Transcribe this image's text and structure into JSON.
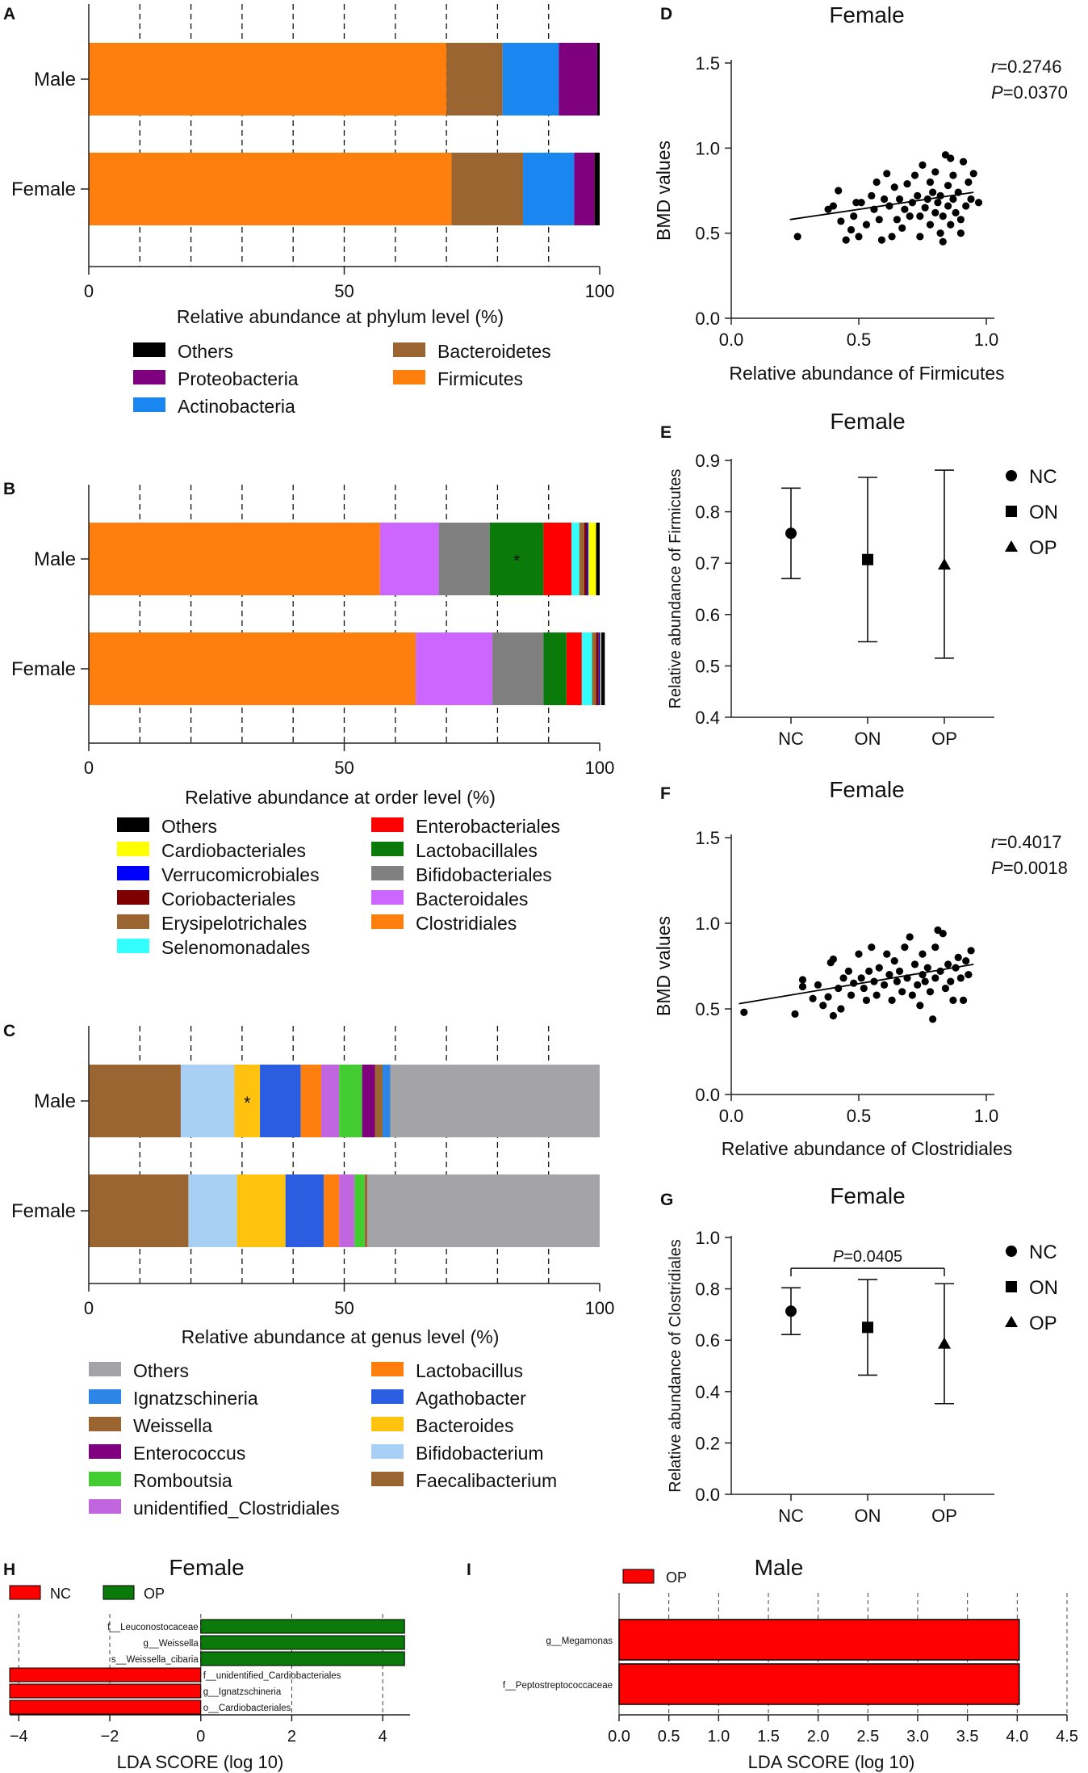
{
  "colors": {
    "Others": "#000000",
    "Proteobacteria": "#7f007f",
    "Actinobacteria": "#1a86f0",
    "Bacteroidetes": "#9b6532",
    "Firmicutes": "#ff7f0e",
    "Enterobacteriales": "#ff0000",
    "Lactobacillales": "#0a7a0a",
    "Bifidobacteriales": "#808080",
    "Bacteroidales": "#cc66ff",
    "Clostridiales": "#ff7f0e",
    "Cardiobacteriales": "#ffff00",
    "Verrucomicrobiales": "#0000ff",
    "Coriobacteriales": "#7f0000",
    "Erysipelotrichales": "#9b6532",
    "Selenomonadales": "#33ffff",
    "gOthers": "#a3a3a8",
    "Ignatzschineria": "#2d85e6",
    "Weissella": "#9b6532",
    "Enterococcus": "#7f007f",
    "Romboutsia": "#44cc33",
    "unidentified_Clostridiales": "#c266e0",
    "Lactobacillus": "#ff7f0e",
    "Agathobacter": "#2a5de0",
    "Bacteroides": "#ffc20e",
    "Bifidobacterium": "#a8d0f5",
    "Faecalibacterium": "#9b6532",
    "ldaNC": "#ff0000",
    "ldaOP": "#0a7a0a"
  },
  "chart_data": [
    {
      "panel": "A",
      "type": "bar",
      "orientation": "horizontal-stacked",
      "categories": [
        "Male",
        "Female"
      ],
      "xlabel": "Relative abundance at phylum level (%)",
      "xlim": [
        0,
        100
      ],
      "xticks": [
        "0",
        "50",
        "100"
      ],
      "series": [
        {
          "name": "Firmicutes",
          "values": [
            70,
            71
          ]
        },
        {
          "name": "Bacteroidetes",
          "values": [
            11,
            14
          ]
        },
        {
          "name": "Actinobacteria",
          "values": [
            11,
            10
          ]
        },
        {
          "name": "Proteobacteria",
          "values": [
            7.5,
            4
          ]
        },
        {
          "name": "Others",
          "values": [
            0.5,
            1
          ]
        }
      ],
      "legend": [
        {
          "name": "Others",
          "label": "Others"
        },
        {
          "name": "Bacteroidetes",
          "label": "Bacteroidetes"
        },
        {
          "name": "Proteobacteria",
          "label": "Proteobacteria"
        },
        {
          "name": "Firmicutes",
          "label": "Firmicutes"
        },
        {
          "name": "Actinobacteria",
          "label": "Actinobacteria"
        }
      ]
    },
    {
      "panel": "B",
      "type": "bar",
      "orientation": "horizontal-stacked",
      "categories": [
        "Male",
        "Female"
      ],
      "xlabel": "Relative abundance at order level (%)",
      "xlim": [
        0,
        100
      ],
      "xticks": [
        "0",
        "50",
        "100"
      ],
      "series": [
        {
          "name": "Clostridiales",
          "values": [
            57,
            64
          ]
        },
        {
          "name": "Bacteroidales",
          "values": [
            11.5,
            15
          ]
        },
        {
          "name": "Bifidobacteriales",
          "values": [
            10,
            10
          ]
        },
        {
          "name": "Lactobacillales",
          "values": [
            10.5,
            4.5
          ]
        },
        {
          "name": "Enterobacteriales",
          "values": [
            5.5,
            3
          ]
        },
        {
          "name": "Selenomonadales",
          "values": [
            1.5,
            2
          ]
        },
        {
          "name": "Erysipelotrichales",
          "values": [
            1,
            0.8
          ]
        },
        {
          "name": "Coriobacteriales",
          "values": [
            0.5,
            0.5
          ]
        },
        {
          "name": "Verrucomicrobiales",
          "values": [
            0.3,
            0.3
          ]
        },
        {
          "name": "Cardiobacteriales",
          "values": [
            1.5,
            0.2
          ]
        },
        {
          "name": "Others",
          "values": [
            0.7,
            0.7
          ]
        }
      ],
      "annotations": [
        {
          "category": "Male",
          "series": "Lactobacillales",
          "text": "*"
        }
      ],
      "legend": [
        {
          "name": "Others",
          "label": "Others"
        },
        {
          "name": "Enterobacteriales",
          "label": "Enterobacteriales"
        },
        {
          "name": "Cardiobacteriales",
          "label": "Cardiobacteriales"
        },
        {
          "name": "Lactobacillales",
          "label": "Lactobacillales"
        },
        {
          "name": "Verrucomicrobiales",
          "label": "Verrucomicrobiales"
        },
        {
          "name": "Bifidobacteriales",
          "label": "Bifidobacteriales"
        },
        {
          "name": "Coriobacteriales",
          "label": "Coriobacteriales"
        },
        {
          "name": "Bacteroidales",
          "label": "Bacteroidales"
        },
        {
          "name": "Erysipelotrichales",
          "label": "Erysipelotrichales"
        },
        {
          "name": "Clostridiales",
          "label": "Clostridiales"
        },
        {
          "name": "Selenomonadales",
          "label": "Selenomonadales"
        }
      ]
    },
    {
      "panel": "C",
      "type": "bar",
      "orientation": "horizontal-stacked",
      "categories": [
        "Male",
        "Female"
      ],
      "xlabel": "Relative abundance at genus level (%)",
      "xlim": [
        0,
        100
      ],
      "xticks": [
        "0",
        "50",
        "100"
      ],
      "series": [
        {
          "name": "Faecalibacterium",
          "values": [
            18,
            19.5
          ]
        },
        {
          "name": "Bifidobacterium",
          "values": [
            10.5,
            9.5
          ]
        },
        {
          "name": "Bacteroides",
          "values": [
            5,
            9.5
          ]
        },
        {
          "name": "Agathobacter",
          "values": [
            8,
            7.5
          ]
        },
        {
          "name": "Lactobacillus",
          "values": [
            4,
            3
          ]
        },
        {
          "name": "unidentified_Clostridiales",
          "values": [
            3.5,
            3
          ]
        },
        {
          "name": "Romboutsia",
          "values": [
            4.5,
            2
          ]
        },
        {
          "name": "Enterococcus",
          "values": [
            2.5,
            0
          ]
        },
        {
          "name": "Weissella",
          "values": [
            1.5,
            0.5
          ]
        },
        {
          "name": "Ignatzschineria",
          "values": [
            1.5,
            0
          ]
        },
        {
          "name": "gOthers",
          "values": [
            41,
            45.5
          ]
        }
      ],
      "annotations": [
        {
          "category": "Male",
          "series": "Bacteroides",
          "text": "*"
        }
      ],
      "legend": [
        {
          "name": "gOthers",
          "label": "Others"
        },
        {
          "name": "Lactobacillus",
          "label": "Lactobacillus"
        },
        {
          "name": "Ignatzschineria",
          "label": "Ignatzschineria"
        },
        {
          "name": "Agathobacter",
          "label": "Agathobacter"
        },
        {
          "name": "Weissella",
          "label": "Weissella"
        },
        {
          "name": "Bacteroides",
          "label": "Bacteroides"
        },
        {
          "name": "Enterococcus",
          "label": "Enterococcus"
        },
        {
          "name": "Bifidobacterium",
          "label": "Bifidobacterium"
        },
        {
          "name": "Romboutsia",
          "label": "Romboutsia"
        },
        {
          "name": "Faecalibacterium",
          "label": "Faecalibacterium"
        },
        {
          "name": "unidentified_Clostridiales",
          "label": "unidentified_Clostridiales"
        }
      ]
    },
    {
      "panel": "D",
      "type": "scatter",
      "title": "Female",
      "xlabel": "Relative abundance of Firmicutes",
      "ylabel": "BMD values",
      "xlim": [
        0,
        1.0
      ],
      "ylim": [
        0,
        1.5
      ],
      "xticks": [
        "0.0",
        "0.5",
        "1.0"
      ],
      "yticks": [
        "0.0",
        "0.5",
        "1.0",
        "1.5"
      ],
      "stat_r": "=0.2746",
      "stat_p": "=0.0370",
      "fit": {
        "x": [
          0.23,
          0.95
        ],
        "y": [
          0.58,
          0.74
        ]
      },
      "points": [
        [
          0.26,
          0.48
        ],
        [
          0.38,
          0.64
        ],
        [
          0.4,
          0.66
        ],
        [
          0.42,
          0.75
        ],
        [
          0.43,
          0.57
        ],
        [
          0.45,
          0.46
        ],
        [
          0.47,
          0.52
        ],
        [
          0.48,
          0.6
        ],
        [
          0.49,
          0.68
        ],
        [
          0.5,
          0.48
        ],
        [
          0.51,
          0.68
        ],
        [
          0.53,
          0.55
        ],
        [
          0.55,
          0.72
        ],
        [
          0.56,
          0.64
        ],
        [
          0.57,
          0.8
        ],
        [
          0.58,
          0.58
        ],
        [
          0.59,
          0.46
        ],
        [
          0.6,
          0.7
        ],
        [
          0.61,
          0.85
        ],
        [
          0.62,
          0.66
        ],
        [
          0.63,
          0.48
        ],
        [
          0.64,
          0.77
        ],
        [
          0.65,
          0.58
        ],
        [
          0.66,
          0.7
        ],
        [
          0.67,
          0.53
        ],
        [
          0.68,
          0.64
        ],
        [
          0.69,
          0.79
        ],
        [
          0.7,
          0.6
        ],
        [
          0.71,
          0.68
        ],
        [
          0.72,
          0.84
        ],
        [
          0.73,
          0.72
        ],
        [
          0.74,
          0.48
        ],
        [
          0.74,
          0.6
        ],
        [
          0.75,
          0.9
        ],
        [
          0.76,
          0.65
        ],
        [
          0.77,
          0.7
        ],
        [
          0.78,
          0.55
        ],
        [
          0.78,
          0.8
        ],
        [
          0.79,
          0.74
        ],
        [
          0.8,
          0.62
        ],
        [
          0.8,
          0.86
        ],
        [
          0.81,
          0.68
        ],
        [
          0.82,
          0.5
        ],
        [
          0.82,
          0.72
        ],
        [
          0.83,
          0.45
        ],
        [
          0.83,
          0.6
        ],
        [
          0.84,
          0.96
        ],
        [
          0.85,
          0.78
        ],
        [
          0.85,
          0.66
        ],
        [
          0.86,
          0.55
        ],
        [
          0.87,
          0.7
        ],
        [
          0.87,
          0.84
        ],
        [
          0.88,
          0.62
        ],
        [
          0.89,
          0.74
        ],
        [
          0.9,
          0.58
        ],
        [
          0.91,
          0.92
        ],
        [
          0.92,
          0.66
        ],
        [
          0.93,
          0.8
        ],
        [
          0.94,
          0.7
        ],
        [
          0.95,
          0.85
        ],
        [
          0.97,
          0.68
        ],
        [
          0.9,
          0.5
        ],
        [
          0.86,
          0.94
        ]
      ]
    },
    {
      "panel": "E",
      "type": "scatter",
      "title": "Female",
      "ylabel": "Relative abundance of Firmicutes",
      "categories": [
        "NC",
        "ON",
        "OP"
      ],
      "ylim": [
        0.4,
        0.9
      ],
      "yticks": [
        "0.4",
        "0.5",
        "0.6",
        "0.7",
        "0.8",
        "0.9"
      ],
      "groups": [
        {
          "name": "NC",
          "marker": "circle",
          "mean": 0.758,
          "low": 0.67,
          "high": 0.846
        },
        {
          "name": "ON",
          "marker": "square",
          "mean": 0.707,
          "low": 0.547,
          "high": 0.867
        },
        {
          "name": "OP",
          "marker": "triangle",
          "mean": 0.697,
          "low": 0.515,
          "high": 0.881
        }
      ]
    },
    {
      "panel": "F",
      "type": "scatter",
      "title": "Female",
      "xlabel": "Relative abundance of Clostridiales",
      "ylabel": "BMD values",
      "xlim": [
        0,
        1.0
      ],
      "ylim": [
        0,
        1.5
      ],
      "xticks": [
        "0.0",
        "0.5",
        "1.0"
      ],
      "yticks": [
        "0.0",
        "0.5",
        "1.0",
        "1.5"
      ],
      "stat_r": "=0.4017",
      "stat_p": "=0.0018",
      "fit": {
        "x": [
          0.03,
          0.95
        ],
        "y": [
          0.53,
          0.76
        ]
      },
      "points": [
        [
          0.05,
          0.48
        ],
        [
          0.25,
          0.47
        ],
        [
          0.28,
          0.63
        ],
        [
          0.28,
          0.67
        ],
        [
          0.32,
          0.56
        ],
        [
          0.34,
          0.64
        ],
        [
          0.36,
          0.52
        ],
        [
          0.38,
          0.57
        ],
        [
          0.39,
          0.77
        ],
        [
          0.4,
          0.46
        ],
        [
          0.4,
          0.79
        ],
        [
          0.42,
          0.62
        ],
        [
          0.43,
          0.5
        ],
        [
          0.44,
          0.68
        ],
        [
          0.46,
          0.72
        ],
        [
          0.47,
          0.58
        ],
        [
          0.48,
          0.65
        ],
        [
          0.5,
          0.82
        ],
        [
          0.51,
          0.68
        ],
        [
          0.52,
          0.62
        ],
        [
          0.53,
          0.55
        ],
        [
          0.54,
          0.72
        ],
        [
          0.55,
          0.86
        ],
        [
          0.56,
          0.66
        ],
        [
          0.57,
          0.58
        ],
        [
          0.58,
          0.74
        ],
        [
          0.6,
          0.64
        ],
        [
          0.61,
          0.82
        ],
        [
          0.62,
          0.7
        ],
        [
          0.63,
          0.55
        ],
        [
          0.64,
          0.78
        ],
        [
          0.65,
          0.66
        ],
        [
          0.66,
          0.72
        ],
        [
          0.67,
          0.6
        ],
        [
          0.68,
          0.86
        ],
        [
          0.69,
          0.68
        ],
        [
          0.7,
          0.92
        ],
        [
          0.71,
          0.58
        ],
        [
          0.72,
          0.76
        ],
        [
          0.73,
          0.64
        ],
        [
          0.74,
          0.52
        ],
        [
          0.75,
          0.82
        ],
        [
          0.75,
          0.7
        ],
        [
          0.76,
          0.66
        ],
        [
          0.77,
          0.74
        ],
        [
          0.78,
          0.6
        ],
        [
          0.79,
          0.44
        ],
        [
          0.8,
          0.86
        ],
        [
          0.8,
          0.68
        ],
        [
          0.81,
          0.96
        ],
        [
          0.82,
          0.72
        ],
        [
          0.83,
          0.94
        ],
        [
          0.84,
          0.62
        ],
        [
          0.85,
          0.76
        ],
        [
          0.86,
          0.66
        ],
        [
          0.87,
          0.55
        ],
        [
          0.88,
          0.74
        ],
        [
          0.89,
          0.8
        ],
        [
          0.9,
          0.68
        ],
        [
          0.91,
          0.55
        ],
        [
          0.92,
          0.78
        ],
        [
          0.94,
          0.84
        ],
        [
          0.93,
          0.7
        ]
      ]
    },
    {
      "panel": "G",
      "type": "scatter",
      "title": "Female",
      "ylabel": "Relative abundance of Clostridiales",
      "categories": [
        "NC",
        "ON",
        "OP"
      ],
      "ylim": [
        0.0,
        1.0
      ],
      "yticks": [
        "0.0",
        "0.2",
        "0.4",
        "0.6",
        "0.8",
        "1.0"
      ],
      "bracket": {
        "from": "NC",
        "to": "OP",
        "y": 0.88,
        "label": "=0.0405"
      },
      "groups": [
        {
          "name": "NC",
          "marker": "circle",
          "mean": 0.713,
          "low": 0.622,
          "high": 0.804
        },
        {
          "name": "ON",
          "marker": "square",
          "mean": 0.65,
          "low": 0.464,
          "high": 0.836
        },
        {
          "name": "OP",
          "marker": "triangle",
          "mean": 0.586,
          "low": 0.353,
          "high": 0.82
        }
      ]
    },
    {
      "panel": "H",
      "type": "bar",
      "orientation": "horizontal-diverging",
      "title": "Female",
      "xlabel": "LDA SCORE (log 10)",
      "xlim": [
        -4.2,
        4.6
      ],
      "xticks": [
        "−4",
        "−2",
        "0",
        "2",
        "4"
      ],
      "legend": [
        {
          "name": "ldaNC",
          "label": "NC"
        },
        {
          "name": "ldaOP",
          "label": "OP"
        }
      ],
      "bars": [
        {
          "label": "f__Leuconostocaceae",
          "value": 4.48,
          "group": "ldaOP"
        },
        {
          "label": "g__Weissella",
          "value": 4.48,
          "group": "ldaOP"
        },
        {
          "label": "s__Weissella_cibaria",
          "value": 4.48,
          "group": "ldaOP"
        },
        {
          "label": "f__unidentified_Cardiobacteriales",
          "value": -4.2,
          "group": "ldaNC"
        },
        {
          "label": "g__Ignatzschineria",
          "value": -4.2,
          "group": "ldaNC"
        },
        {
          "label": "o__Cardiobacteriales",
          "value": -4.2,
          "group": "ldaNC"
        }
      ]
    },
    {
      "panel": "I",
      "type": "bar",
      "orientation": "horizontal",
      "title": "Male",
      "xlabel": "LDA SCORE (log 10)",
      "xlim": [
        0,
        4.5
      ],
      "xticks": [
        "0.0",
        "0.5",
        "1.0",
        "1.5",
        "2.0",
        "2.5",
        "3.0",
        "3.5",
        "4.0",
        "4.5"
      ],
      "legend": [
        {
          "name": "ldaNC",
          "label": "OP"
        }
      ],
      "bars": [
        {
          "label": "g__Megamonas",
          "value": 4.02,
          "group": "ldaNC"
        },
        {
          "label": "f__Peptostreptococcaceae",
          "value": 4.02,
          "group": "ldaNC"
        }
      ]
    }
  ],
  "panel_letters": [
    "A",
    "B",
    "C",
    "D",
    "E",
    "F",
    "G",
    "H",
    "I"
  ],
  "stat_labels": {
    "r": "r",
    "p": "P"
  }
}
